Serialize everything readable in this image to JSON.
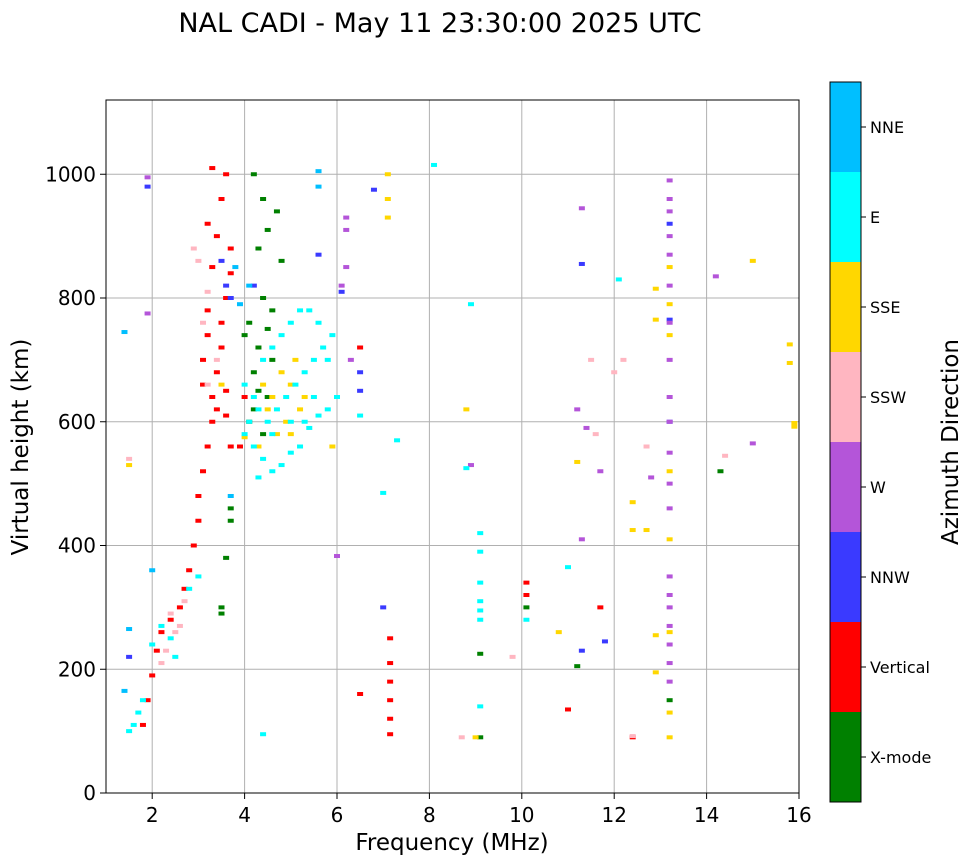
{
  "chart_data": {
    "type": "scatter",
    "title": "NAL CADI - May 11 23:30:00 2025 UTC",
    "xlabel": "Frequency (MHz)",
    "ylabel": "Virtual height (km)",
    "xlim": [
      1,
      16
    ],
    "ylim": [
      0,
      1120
    ],
    "xticks": [
      2,
      4,
      6,
      8,
      10,
      12,
      14,
      16
    ],
    "yticks": [
      0,
      200,
      400,
      600,
      800,
      1000
    ],
    "grid": true,
    "colorbar": {
      "label": "Azimuth Direction",
      "categories": [
        {
          "name": "X-mode",
          "color": "#008000"
        },
        {
          "name": "Vertical",
          "color": "#ff0000"
        },
        {
          "name": "NNW",
          "color": "#3a3aff"
        },
        {
          "name": "W",
          "color": "#b455d9"
        },
        {
          "name": "SSW",
          "color": "#ffb6c1"
        },
        {
          "name": "SSE",
          "color": "#ffd700"
        },
        {
          "name": "E",
          "color": "#00ffff"
        },
        {
          "name": "NNE",
          "color": "#00bfff"
        }
      ]
    },
    "series": [
      {
        "name": "Vertical",
        "color": "#ff0000",
        "points": [
          [
            1.8,
            110
          ],
          [
            1.9,
            150
          ],
          [
            2.0,
            190
          ],
          [
            2.1,
            230
          ],
          [
            2.2,
            260
          ],
          [
            2.4,
            280
          ],
          [
            2.6,
            300
          ],
          [
            2.7,
            330
          ],
          [
            2.8,
            360
          ],
          [
            2.9,
            400
          ],
          [
            3.0,
            440
          ],
          [
            3.0,
            480
          ],
          [
            3.1,
            520
          ],
          [
            3.2,
            560
          ],
          [
            3.3,
            600
          ],
          [
            3.3,
            640
          ],
          [
            3.4,
            680
          ],
          [
            3.5,
            720
          ],
          [
            3.5,
            760
          ],
          [
            3.6,
            800
          ],
          [
            3.7,
            840
          ],
          [
            3.7,
            880
          ],
          [
            3.2,
            920
          ],
          [
            3.5,
            960
          ],
          [
            3.6,
            1000
          ],
          [
            3.3,
            1010
          ],
          [
            3.6,
            650
          ],
          [
            3.1,
            700
          ],
          [
            3.4,
            620
          ],
          [
            3.2,
            780
          ],
          [
            3.3,
            850
          ],
          [
            3.4,
            900
          ],
          [
            3.1,
            660
          ],
          [
            3.2,
            740
          ],
          [
            3.7,
            560
          ],
          [
            3.6,
            610
          ],
          [
            4.0,
            640
          ],
          [
            3.9,
            560
          ],
          [
            7.15,
            250
          ],
          [
            7.15,
            210
          ],
          [
            7.15,
            180
          ],
          [
            7.15,
            150
          ],
          [
            7.15,
            120
          ],
          [
            7.15,
            95
          ],
          [
            10.1,
            340
          ],
          [
            10.1,
            320
          ],
          [
            11.0,
            135
          ],
          [
            11.7,
            300
          ],
          [
            6.5,
            160
          ],
          [
            6.5,
            720
          ],
          [
            12.4,
            90
          ]
        ]
      },
      {
        "name": "X-mode",
        "color": "#008000",
        "points": [
          [
            3.7,
            460
          ],
          [
            3.7,
            440
          ],
          [
            3.6,
            380
          ],
          [
            3.5,
            300
          ],
          [
            3.5,
            290
          ],
          [
            4.1,
            760
          ],
          [
            4.3,
            720
          ],
          [
            4.4,
            800
          ],
          [
            4.2,
            680
          ],
          [
            4.5,
            750
          ],
          [
            4.3,
            650
          ],
          [
            4.0,
            740
          ],
          [
            4.6,
            700
          ],
          [
            4.2,
            620
          ],
          [
            4.4,
            580
          ],
          [
            4.1,
            600
          ],
          [
            4.5,
            640
          ],
          [
            4.3,
            880
          ],
          [
            4.4,
            960
          ],
          [
            4.7,
            940
          ],
          [
            4.8,
            860
          ],
          [
            4.2,
            1000
          ],
          [
            4.6,
            780
          ],
          [
            10.1,
            300
          ],
          [
            14.3,
            520
          ],
          [
            9.1,
            90
          ],
          [
            9.1,
            225
          ],
          [
            11.2,
            205
          ],
          [
            13.2,
            150
          ],
          [
            4.5,
            910
          ]
        ]
      },
      {
        "name": "NNW",
        "color": "#3a3aff",
        "points": [
          [
            1.9,
            980
          ],
          [
            1.5,
            220
          ],
          [
            3.6,
            820
          ],
          [
            3.7,
            800
          ],
          [
            3.5,
            860
          ],
          [
            4.2,
            820
          ],
          [
            5.6,
            870
          ],
          [
            6.1,
            810
          ],
          [
            6.5,
            650
          ],
          [
            6.5,
            680
          ],
          [
            11.3,
            855
          ],
          [
            11.3,
            230
          ],
          [
            13.2,
            920
          ],
          [
            13.2,
            765
          ],
          [
            13.2,
            600
          ],
          [
            11.8,
            245
          ],
          [
            7.0,
            300
          ],
          [
            6.8,
            975
          ]
        ]
      },
      {
        "name": "W",
        "color": "#b455d9",
        "points": [
          [
            1.9,
            995
          ],
          [
            1.9,
            775
          ],
          [
            6.2,
            930
          ],
          [
            6.2,
            910
          ],
          [
            6.2,
            850
          ],
          [
            6.1,
            820
          ],
          [
            6.3,
            700
          ],
          [
            8.9,
            530
          ],
          [
            11.2,
            620
          ],
          [
            11.3,
            410
          ],
          [
            11.4,
            590
          ],
          [
            11.3,
            945
          ],
          [
            11.7,
            520
          ],
          [
            12.8,
            510
          ],
          [
            13.2,
            990
          ],
          [
            13.2,
            960
          ],
          [
            13.2,
            940
          ],
          [
            13.2,
            900
          ],
          [
            13.2,
            870
          ],
          [
            13.2,
            820
          ],
          [
            13.2,
            760
          ],
          [
            13.2,
            700
          ],
          [
            13.2,
            640
          ],
          [
            13.2,
            600
          ],
          [
            13.2,
            550
          ],
          [
            13.2,
            500
          ],
          [
            13.2,
            460
          ],
          [
            13.2,
            350
          ],
          [
            13.2,
            320
          ],
          [
            13.2,
            300
          ],
          [
            13.2,
            270
          ],
          [
            13.2,
            240
          ],
          [
            13.2,
            210
          ],
          [
            13.2,
            180
          ],
          [
            14.2,
            835
          ],
          [
            15.0,
            565
          ],
          [
            6.0,
            383
          ]
        ]
      },
      {
        "name": "SSW",
        "color": "#ffb6c1",
        "points": [
          [
            1.5,
            540
          ],
          [
            2.3,
            230
          ],
          [
            2.5,
            260
          ],
          [
            2.4,
            290
          ],
          [
            2.6,
            270
          ],
          [
            2.2,
            210
          ],
          [
            2.7,
            310
          ],
          [
            3.1,
            760
          ],
          [
            3.2,
            810
          ],
          [
            3.0,
            860
          ],
          [
            2.9,
            880
          ],
          [
            3.4,
            700
          ],
          [
            3.2,
            660
          ],
          [
            11.5,
            700
          ],
          [
            11.6,
            580
          ],
          [
            12.0,
            680
          ],
          [
            12.7,
            560
          ],
          [
            12.2,
            700
          ],
          [
            14.4,
            545
          ],
          [
            9.8,
            220
          ],
          [
            8.7,
            90
          ],
          [
            12.4,
            92
          ]
        ]
      },
      {
        "name": "SSE",
        "color": "#ffd700",
        "points": [
          [
            1.5,
            530
          ],
          [
            7.1,
            1000
          ],
          [
            7.1,
            960
          ],
          [
            7.1,
            930
          ],
          [
            4.8,
            680
          ],
          [
            5.0,
            660
          ],
          [
            4.6,
            640
          ],
          [
            5.2,
            620
          ],
          [
            4.9,
            600
          ],
          [
            4.7,
            580
          ],
          [
            5.1,
            700
          ],
          [
            4.3,
            560
          ],
          [
            4.5,
            620
          ],
          [
            5.3,
            640
          ],
          [
            5.0,
            580
          ],
          [
            4.4,
            660
          ],
          [
            9.0,
            90
          ],
          [
            8.8,
            620
          ],
          [
            11.2,
            535
          ],
          [
            12.4,
            470
          ],
          [
            12.4,
            425
          ],
          [
            12.7,
            425
          ],
          [
            12.9,
            815
          ],
          [
            12.9,
            765
          ],
          [
            12.9,
            255
          ],
          [
            12.9,
            195
          ],
          [
            13.2,
            850
          ],
          [
            13.2,
            790
          ],
          [
            13.2,
            740
          ],
          [
            13.2,
            520
          ],
          [
            13.2,
            410
          ],
          [
            13.2,
            260
          ],
          [
            13.2,
            130
          ],
          [
            13.2,
            90
          ],
          [
            15.0,
            860
          ],
          [
            15.8,
            725
          ],
          [
            15.8,
            695
          ],
          [
            15.9,
            598
          ],
          [
            15.9,
            592
          ],
          [
            10.8,
            260
          ],
          [
            5.9,
            560
          ],
          [
            4.0,
            575
          ],
          [
            3.5,
            660
          ]
        ]
      },
      {
        "name": "E",
        "color": "#00ffff",
        "points": [
          [
            1.5,
            100
          ],
          [
            1.6,
            110
          ],
          [
            1.7,
            130
          ],
          [
            1.8,
            150
          ],
          [
            2.0,
            240
          ],
          [
            2.2,
            270
          ],
          [
            2.4,
            250
          ],
          [
            2.5,
            220
          ],
          [
            2.8,
            330
          ],
          [
            3.0,
            350
          ],
          [
            4.0,
            580
          ],
          [
            4.2,
            560
          ],
          [
            4.4,
            540
          ],
          [
            4.6,
            520
          ],
          [
            4.8,
            530
          ],
          [
            5.0,
            550
          ],
          [
            5.2,
            560
          ],
          [
            5.4,
            590
          ],
          [
            5.6,
            610
          ],
          [
            5.8,
            620
          ],
          [
            6.0,
            640
          ],
          [
            4.1,
            600
          ],
          [
            4.3,
            620
          ],
          [
            4.5,
            600
          ],
          [
            4.7,
            620
          ],
          [
            4.9,
            640
          ],
          [
            5.1,
            660
          ],
          [
            5.3,
            680
          ],
          [
            5.5,
            700
          ],
          [
            5.7,
            720
          ],
          [
            5.9,
            740
          ],
          [
            4.4,
            700
          ],
          [
            4.6,
            720
          ],
          [
            4.8,
            740
          ],
          [
            5.0,
            760
          ],
          [
            5.2,
            780
          ],
          [
            5.4,
            780
          ],
          [
            5.6,
            760
          ],
          [
            5.8,
            700
          ],
          [
            5.5,
            640
          ],
          [
            5.3,
            600
          ],
          [
            5.0,
            600
          ],
          [
            4.6,
            580
          ],
          [
            4.2,
            640
          ],
          [
            4.0,
            660
          ],
          [
            6.5,
            610
          ],
          [
            7.3,
            570
          ],
          [
            8.8,
            525
          ],
          [
            9.1,
            420
          ],
          [
            9.1,
            390
          ],
          [
            9.1,
            340
          ],
          [
            9.1,
            310
          ],
          [
            9.1,
            295
          ],
          [
            9.1,
            280
          ],
          [
            9.1,
            140
          ],
          [
            10.1,
            280
          ],
          [
            11.0,
            365
          ],
          [
            12.1,
            830
          ],
          [
            4.4,
            95
          ],
          [
            8.1,
            1015
          ],
          [
            8.9,
            790
          ],
          [
            7.0,
            485
          ],
          [
            4.3,
            510
          ]
        ]
      },
      {
        "name": "NNE",
        "color": "#00bfff",
        "points": [
          [
            1.4,
            165
          ],
          [
            1.5,
            265
          ],
          [
            1.4,
            745
          ],
          [
            2.0,
            360
          ],
          [
            3.8,
            850
          ],
          [
            3.9,
            790
          ],
          [
            5.6,
            1005
          ],
          [
            5.6,
            980
          ],
          [
            3.7,
            480
          ],
          [
            4.1,
            820
          ]
        ]
      }
    ]
  }
}
